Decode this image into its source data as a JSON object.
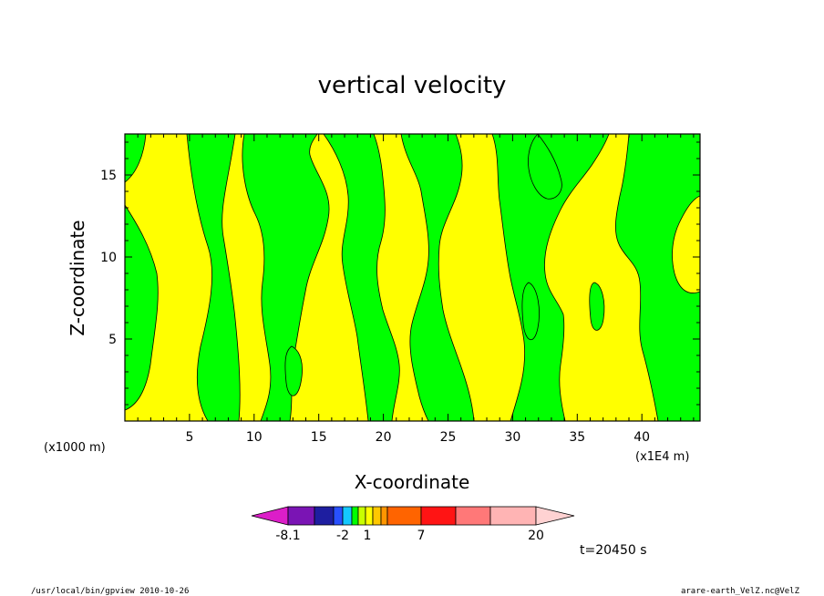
{
  "chart_data": {
    "type": "heatmap",
    "title": "vertical velocity",
    "xlabel": "X-coordinate",
    "ylabel": "Z-coordinate",
    "x_unit_left": "(x1000 m)",
    "x_unit_right": "(x1E4 m)",
    "xlim": [
      0,
      44.5
    ],
    "ylim": [
      0,
      17.5
    ],
    "x_ticks": [
      5,
      10,
      15,
      20,
      25,
      30,
      35,
      40
    ],
    "x_tick_labels": [
      "5",
      "10",
      "15",
      "20",
      "25",
      "30",
      "35",
      "40"
    ],
    "y_ticks": [
      5,
      10,
      15
    ],
    "y_tick_labels": [
      "5",
      "10",
      "15"
    ],
    "grid": false,
    "colorbar": {
      "colors": [
        "#dc1ec8",
        "#7a14b4",
        "#1e1ea0",
        "#2850ff",
        "#14c8ff",
        "#00ff00",
        "#c8ff00",
        "#ffff00",
        "#ffc800",
        "#ff9600",
        "#ff6400",
        "#ff1414",
        "#ff7878",
        "#ffb4b4",
        "#ffd2d2"
      ],
      "labels": [
        "-8.1",
        "-2",
        "1",
        "7",
        "20"
      ]
    },
    "field_colors": {
      "upward": "#ffff00",
      "downward": "#00ff00",
      "contour": "#000000"
    },
    "field_description_levels": [
      "~0 m/s contour separating weak upward and downward motion"
    ]
  },
  "annotations": {
    "time": "t=20450 s",
    "footer_left": "/usr/local/bin/gpview  2010-10-26",
    "footer_right": "arare-earth_VelZ.nc@VelZ"
  }
}
